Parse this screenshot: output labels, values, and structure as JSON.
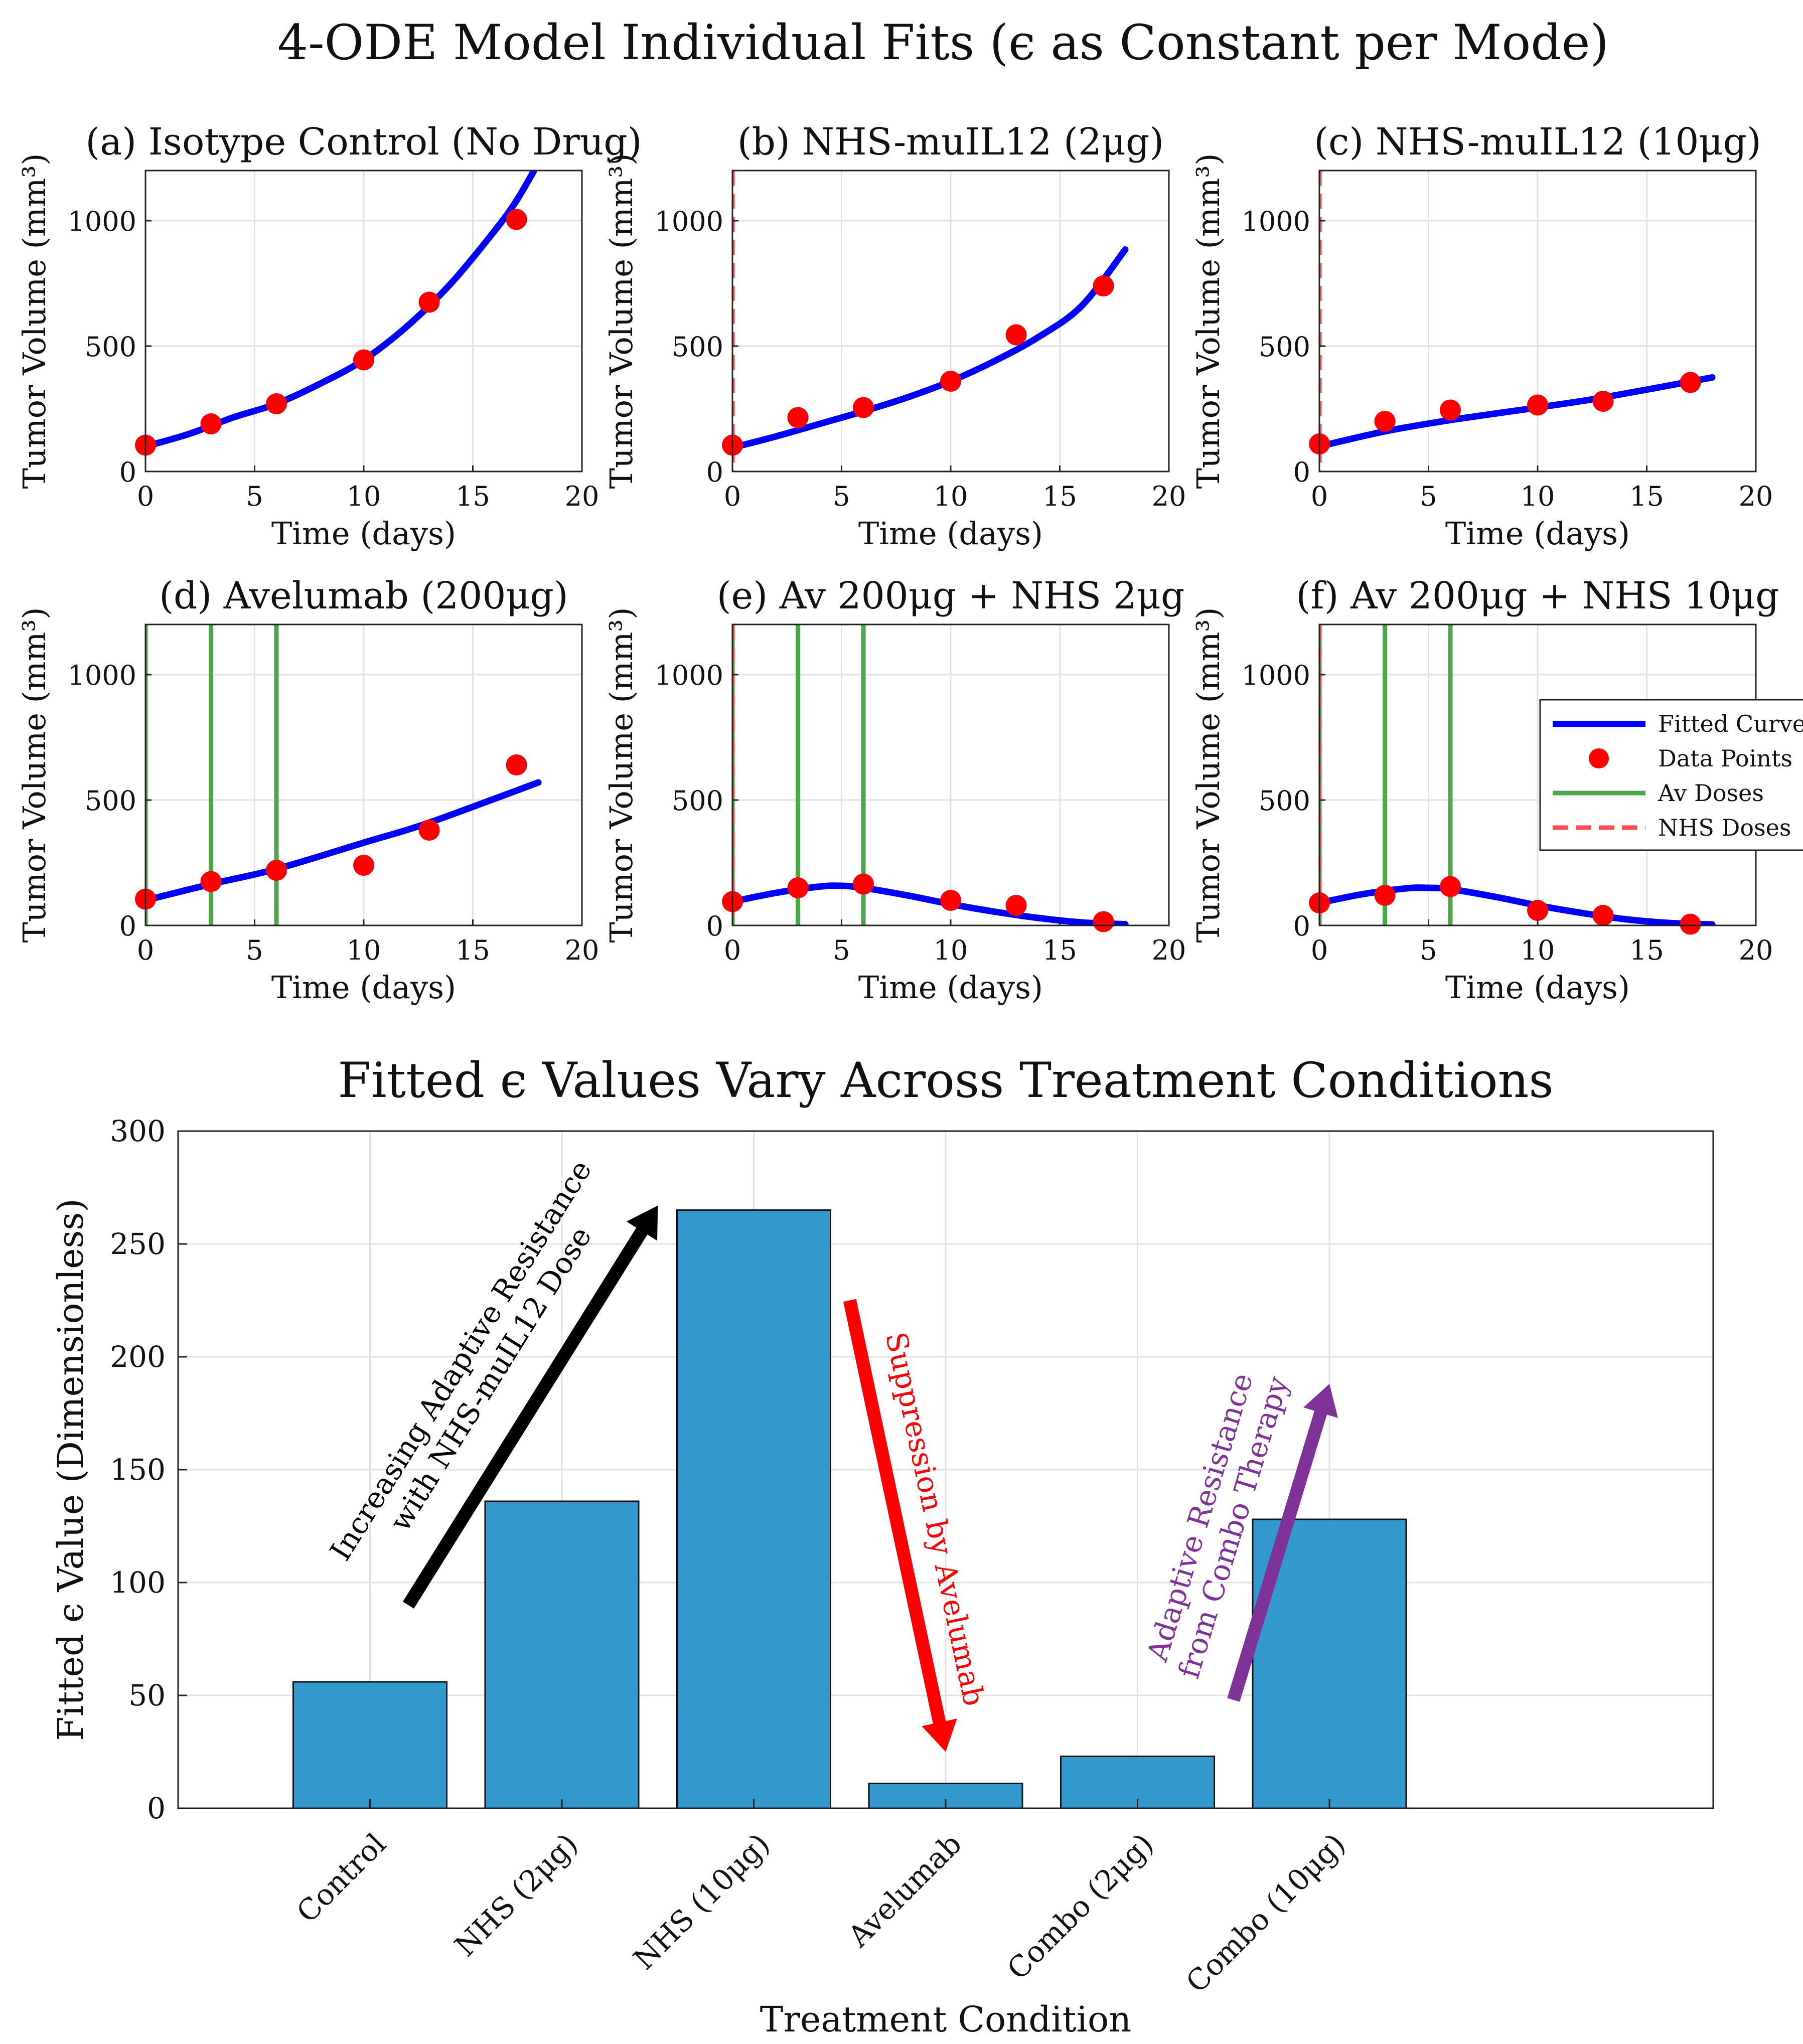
{
  "figure": {
    "suptitle": "4-ODE Model Individual Fits (ϵ as Constant per Mode)"
  },
  "colors": {
    "curve": "#0000ff",
    "points": "#ff0000",
    "av_dose": "#4ca64c",
    "nhs_dose": "#ff4d4d",
    "bar": "#3399cc",
    "arrow_black": "#000000",
    "arrow_red": "#ff0000",
    "arrow_purple": "#7f3399",
    "grid": "#e2e2e2"
  },
  "chart_data": [
    {
      "type": "line",
      "title": "(a) Isotype Control (No Drug)",
      "xlabel": "Time (days)",
      "ylabel": "Tumor Volume (mm³)",
      "xlim": [
        0,
        20
      ],
      "ylim": [
        0,
        1200
      ],
      "xticks": [
        0,
        5,
        10,
        15,
        20
      ],
      "yticks": [
        0,
        500,
        1000
      ],
      "grid": true,
      "fit_x": [
        0,
        2,
        4,
        6,
        8,
        10,
        12,
        14,
        16,
        17,
        18
      ],
      "fit_y": [
        100,
        150,
        215,
        270,
        350,
        445,
        580,
        750,
        960,
        1080,
        1230
      ],
      "data_x": [
        0,
        3,
        6,
        10,
        13,
        17
      ],
      "data_y": [
        105,
        190,
        270,
        445,
        675,
        1005
      ],
      "av_doses": [],
      "nhs_doses": [],
      "legend": null
    },
    {
      "type": "line",
      "title": "(b) NHS-muIL12 (2μg)",
      "xlabel": "Time (days)",
      "ylabel": "Tumor Volume (mm³)",
      "xlim": [
        0,
        20
      ],
      "ylim": [
        0,
        1200
      ],
      "xticks": [
        0,
        5,
        10,
        15,
        20
      ],
      "yticks": [
        0,
        500,
        1000
      ],
      "grid": true,
      "fit_x": [
        0,
        2,
        4,
        6,
        8,
        10,
        12,
        14,
        16,
        18
      ],
      "fit_y": [
        95,
        140,
        190,
        240,
        295,
        360,
        440,
        535,
        660,
        885
      ],
      "data_x": [
        0,
        3,
        6,
        10,
        13,
        17
      ],
      "data_y": [
        105,
        215,
        255,
        360,
        545,
        740
      ],
      "av_doses": [],
      "nhs_doses": [
        0
      ],
      "legend": null
    },
    {
      "type": "line",
      "title": "(c) NHS-muIL12 (10μg)",
      "xlabel": "Time (days)",
      "ylabel": "Tumor Volume (mm³)",
      "xlim": [
        0,
        20
      ],
      "ylim": [
        0,
        1200
      ],
      "xticks": [
        0,
        5,
        10,
        15,
        20
      ],
      "yticks": [
        0,
        500,
        1000
      ],
      "grid": true,
      "fit_x": [
        0,
        3,
        6,
        10,
        13,
        18
      ],
      "fit_y": [
        100,
        160,
        205,
        255,
        295,
        375
      ],
      "data_x": [
        0,
        3,
        6,
        10,
        13,
        17
      ],
      "data_y": [
        110,
        200,
        245,
        265,
        280,
        355
      ],
      "av_doses": [],
      "nhs_doses": [
        0
      ],
      "legend": null
    },
    {
      "type": "line",
      "title": "(d) Avelumab (200μg)",
      "xlabel": "Time (days)",
      "ylabel": "Tumor Volume (mm³)",
      "xlim": [
        0,
        20
      ],
      "ylim": [
        0,
        1200
      ],
      "xticks": [
        0,
        5,
        10,
        15,
        20
      ],
      "yticks": [
        0,
        500,
        1000
      ],
      "grid": true,
      "fit_x": [
        0,
        3,
        6,
        10,
        13,
        18
      ],
      "fit_y": [
        100,
        165,
        225,
        330,
        410,
        570
      ],
      "data_x": [
        0,
        3,
        6,
        10,
        13,
        17
      ],
      "data_y": [
        105,
        175,
        220,
        240,
        380,
        640
      ],
      "av_doses": [
        0,
        3,
        6
      ],
      "nhs_doses": [],
      "legend": null
    },
    {
      "type": "line",
      "title": "(e) Av 200μg + NHS 2μg",
      "xlabel": "Time (days)",
      "ylabel": "Tumor Volume (mm³)",
      "xlim": [
        0,
        20
      ],
      "ylim": [
        0,
        1200
      ],
      "xticks": [
        0,
        5,
        10,
        15,
        20
      ],
      "yticks": [
        0,
        500,
        1000
      ],
      "grid": true,
      "fit_x": [
        0,
        2,
        4,
        5,
        6,
        8,
        10,
        12,
        14,
        16,
        18
      ],
      "fit_y": [
        95,
        130,
        155,
        158,
        150,
        120,
        85,
        55,
        30,
        12,
        5
      ],
      "data_x": [
        0,
        3,
        6,
        10,
        13,
        17
      ],
      "data_y": [
        95,
        150,
        165,
        100,
        80,
        15
      ],
      "av_doses": [
        0,
        3,
        6
      ],
      "nhs_doses": [
        0
      ],
      "legend": null
    },
    {
      "type": "line",
      "title": "(f) Av 200μg + NHS 10μg",
      "xlabel": "Time (days)",
      "ylabel": "Tumor Volume (mm³)",
      "xlim": [
        0,
        20
      ],
      "ylim": [
        0,
        1200
      ],
      "xticks": [
        0,
        5,
        10,
        15,
        20
      ],
      "yticks": [
        0,
        500,
        1000
      ],
      "grid": true,
      "fit_x": [
        0,
        2,
        4,
        5,
        6,
        8,
        10,
        12,
        14,
        16,
        18
      ],
      "fit_y": [
        90,
        125,
        148,
        150,
        145,
        115,
        80,
        50,
        25,
        10,
        4
      ],
      "data_x": [
        0,
        3,
        6,
        10,
        13,
        17
      ],
      "data_y": [
        90,
        120,
        155,
        60,
        40,
        5
      ],
      "av_doses": [
        0,
        3,
        6
      ],
      "nhs_doses": [
        0
      ],
      "legend": {
        "placement": "upper-right",
        "items": [
          "Fitted Curve",
          "Data Points",
          "Av Doses",
          "NHS Doses"
        ]
      }
    },
    {
      "type": "bar",
      "title": "Fitted ϵ Values Vary Across Treatment Conditions",
      "xlabel": "Treatment Condition",
      "ylabel": "Fitted ϵ Value (Dimensionless)",
      "categories": [
        "Control",
        "NHS (2μg)",
        "NHS (10μg)",
        "Avelumab",
        "Combo (2μg)",
        "Combo (10μg)"
      ],
      "values": [
        56,
        136,
        265,
        11,
        23,
        128
      ],
      "xlim": [
        0,
        8
      ],
      "ylim": [
        0,
        300
      ],
      "yticks": [
        0,
        50,
        100,
        150,
        200,
        250,
        300
      ],
      "grid": true,
      "annotations": [
        {
          "text": [
            "Increasing Adaptive Resistance",
            "with NHS-muIL12 Dose"
          ],
          "color": "arrow_black",
          "from": [
            1.2,
            90
          ],
          "to": [
            2.5,
            267
          ]
        },
        {
          "text": [
            "Suppression by Avelumab"
          ],
          "color": "arrow_red",
          "from": [
            3.5,
            225
          ],
          "to": [
            4.0,
            25
          ]
        },
        {
          "text": [
            "Adaptive Resistance",
            "from Combo Therapy"
          ],
          "color": "arrow_purple",
          "from": [
            5.5,
            48
          ],
          "to": [
            6.0,
            188
          ]
        }
      ]
    }
  ]
}
